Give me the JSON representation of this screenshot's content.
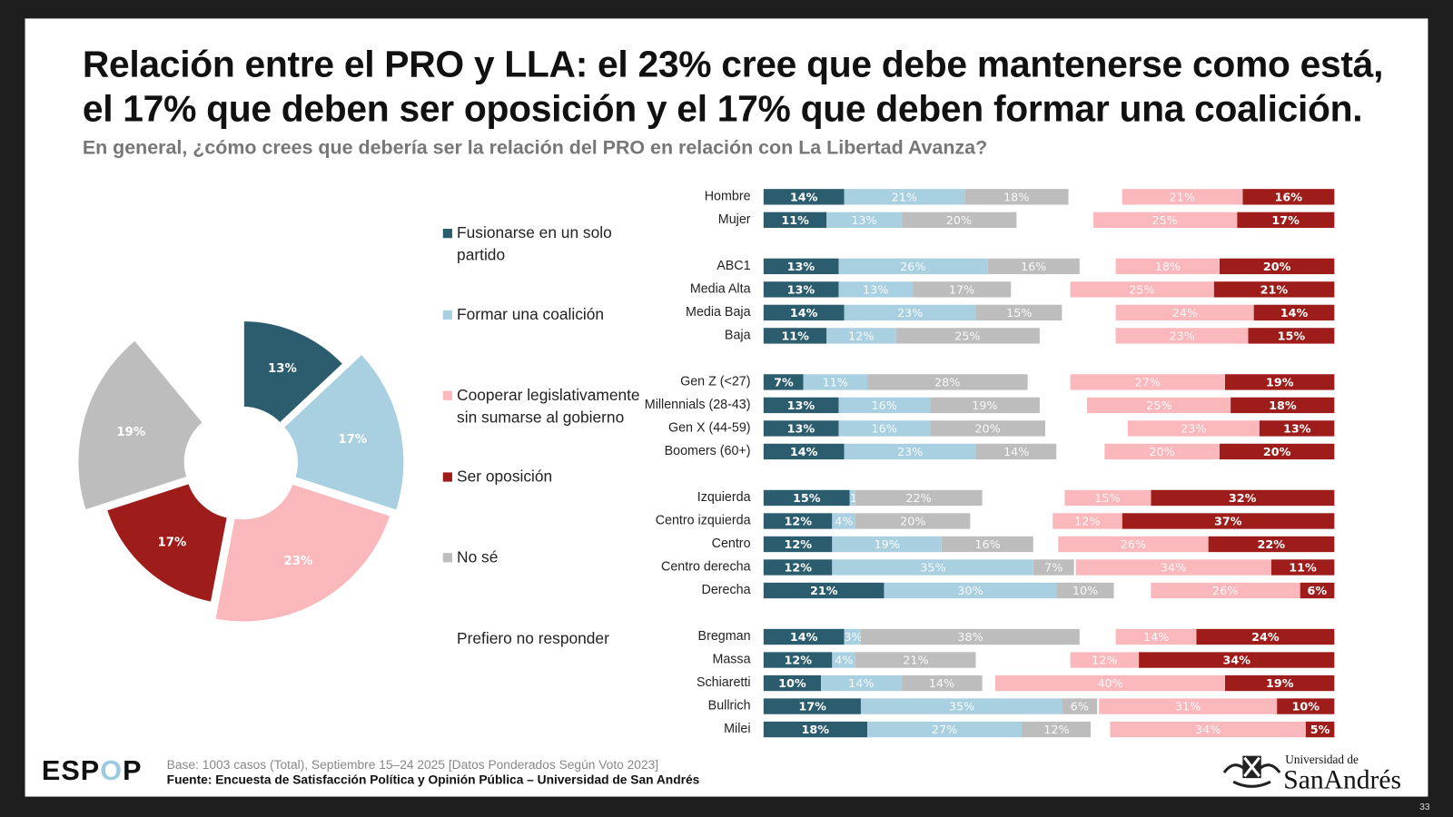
{
  "header": {
    "title": "Relación entre el PRO y LLA: el 23% cree que debe mantenerse como está, el 17% que deben ser oposición y el 17% que deben formar una coalición.",
    "subtitle": "En general, ¿cómo crees que debería ser la relación del PRO en relación con La Libertad Avanza?"
  },
  "colors": {
    "fusionarse": "#2c5d6f",
    "coalicion": "#a9d0e0",
    "cooperar": "#fab8bd",
    "oposicion": "#9e1c19",
    "nose": "#bdbdbd",
    "prefiero": "#ffffff"
  },
  "chart_data": [
    {
      "type": "pie",
      "legend_placement": "right",
      "slices": [
        {
          "name": "Fusionarse en un solo partido",
          "key": "fusionarse",
          "value": 13,
          "label": "13%"
        },
        {
          "name": "Formar una coalición",
          "key": "coalicion",
          "value": 17,
          "label": "17%"
        },
        {
          "name": "Cooperar legislativamente sin sumarse al gobierno",
          "key": "cooperar",
          "value": 23,
          "label": "23%"
        },
        {
          "name": "Ser oposición",
          "key": "oposicion",
          "value": 17,
          "label": "17%"
        },
        {
          "name": "No sé",
          "key": "nose",
          "value": 19,
          "label": "19%"
        },
        {
          "name": "Prefiero no responder",
          "key": "prefiero",
          "value": 11,
          "label": ""
        }
      ]
    },
    {
      "type": "bar",
      "orientation": "horizontal",
      "stacked": "diverging",
      "left_series": [
        "fusionarse",
        "coalicion",
        "nose"
      ],
      "right_series": [
        "cooperar",
        "oposicion"
      ],
      "groups": [
        {
          "rows": [
            {
              "label": "Hombre",
              "fusionarse": 14,
              "coalicion": 21,
              "nose": 18,
              "cooperar": 21,
              "oposicion": 16
            },
            {
              "label": "Mujer",
              "fusionarse": 11,
              "coalicion": 13,
              "nose": 20,
              "cooperar": 25,
              "oposicion": 17
            }
          ]
        },
        {
          "rows": [
            {
              "label": "ABC1",
              "fusionarse": 13,
              "coalicion": 26,
              "nose": 16,
              "cooperar": 18,
              "oposicion": 20
            },
            {
              "label": "Media Alta",
              "fusionarse": 13,
              "coalicion": 13,
              "nose": 17,
              "cooperar": 25,
              "oposicion": 21
            },
            {
              "label": "Media Baja",
              "fusionarse": 14,
              "coalicion": 23,
              "nose": 15,
              "cooperar": 24,
              "oposicion": 14
            },
            {
              "label": "Baja",
              "fusionarse": 11,
              "coalicion": 12,
              "nose": 25,
              "cooperar": 23,
              "oposicion": 15
            }
          ]
        },
        {
          "rows": [
            {
              "label": "Gen Z (<27)",
              "fusionarse": 7,
              "coalicion": 11,
              "nose": 28,
              "cooperar": 27,
              "oposicion": 19
            },
            {
              "label": "Millennials (28-43)",
              "fusionarse": 13,
              "coalicion": 16,
              "nose": 19,
              "cooperar": 25,
              "oposicion": 18
            },
            {
              "label": "Gen X (44-59)",
              "fusionarse": 13,
              "coalicion": 16,
              "nose": 20,
              "cooperar": 23,
              "oposicion": 13
            },
            {
              "label": "Boomers (60+)",
              "fusionarse": 14,
              "coalicion": 23,
              "nose": 14,
              "cooperar": 20,
              "oposicion": 20
            }
          ]
        },
        {
          "rows": [
            {
              "label": "Izquierda",
              "fusionarse": 15,
              "coalicion": 1,
              "nose": 22,
              "cooperar": 15,
              "oposicion": 32
            },
            {
              "label": "Centro izquierda",
              "fusionarse": 12,
              "coalicion": 4,
              "nose": 20,
              "cooperar": 12,
              "oposicion": 37
            },
            {
              "label": "Centro",
              "fusionarse": 12,
              "coalicion": 19,
              "nose": 16,
              "cooperar": 26,
              "oposicion": 22
            },
            {
              "label": "Centro derecha",
              "fusionarse": 12,
              "coalicion": 35,
              "nose": 7,
              "cooperar": 34,
              "oposicion": 11
            },
            {
              "label": "Derecha",
              "fusionarse": 21,
              "coalicion": 30,
              "nose": 10,
              "cooperar": 26,
              "oposicion": 6
            }
          ]
        },
        {
          "rows": [
            {
              "label": "Bregman",
              "fusionarse": 14,
              "coalicion": 3,
              "nose": 38,
              "cooperar": 14,
              "oposicion": 24
            },
            {
              "label": "Massa",
              "fusionarse": 12,
              "coalicion": 4,
              "nose": 21,
              "cooperar": 12,
              "oposicion": 34
            },
            {
              "label": "Schiaretti",
              "fusionarse": 10,
              "coalicion": 14,
              "nose": 14,
              "cooperar": 40,
              "oposicion": 19
            },
            {
              "label": "Bullrich",
              "fusionarse": 17,
              "coalicion": 35,
              "nose": 6,
              "cooperar": 31,
              "oposicion": 10
            },
            {
              "label": "Milei",
              "fusionarse": 18,
              "coalicion": 27,
              "nose": 12,
              "cooperar": 34,
              "oposicion": 5
            }
          ]
        }
      ]
    }
  ],
  "legend": [
    {
      "key": "fusionarse",
      "label": "Fusionarse en un solo partido"
    },
    {
      "key": "coalicion",
      "label": "Formar una coalición"
    },
    {
      "key": "cooperar",
      "label": "Cooperar legislativamente sin sumarse al gobierno"
    },
    {
      "key": "oposicion",
      "label": "Ser oposición"
    },
    {
      "key": "nose",
      "label": "No sé"
    },
    {
      "key": "prefiero",
      "label": "Prefiero no responder"
    }
  ],
  "footer": {
    "base": "Base: 1003 casos (Total), Septiembre 15–24 2025 [Datos Ponderados Según Voto 2023]",
    "source": "Fuente: Encuesta de Satisfacción Política y Opinión Pública – Universidad de San Andrés",
    "logo_left": "ESPOP",
    "logo_right_small": "Universidad de",
    "logo_right_big": "SanAndrés",
    "page_number": "33"
  }
}
